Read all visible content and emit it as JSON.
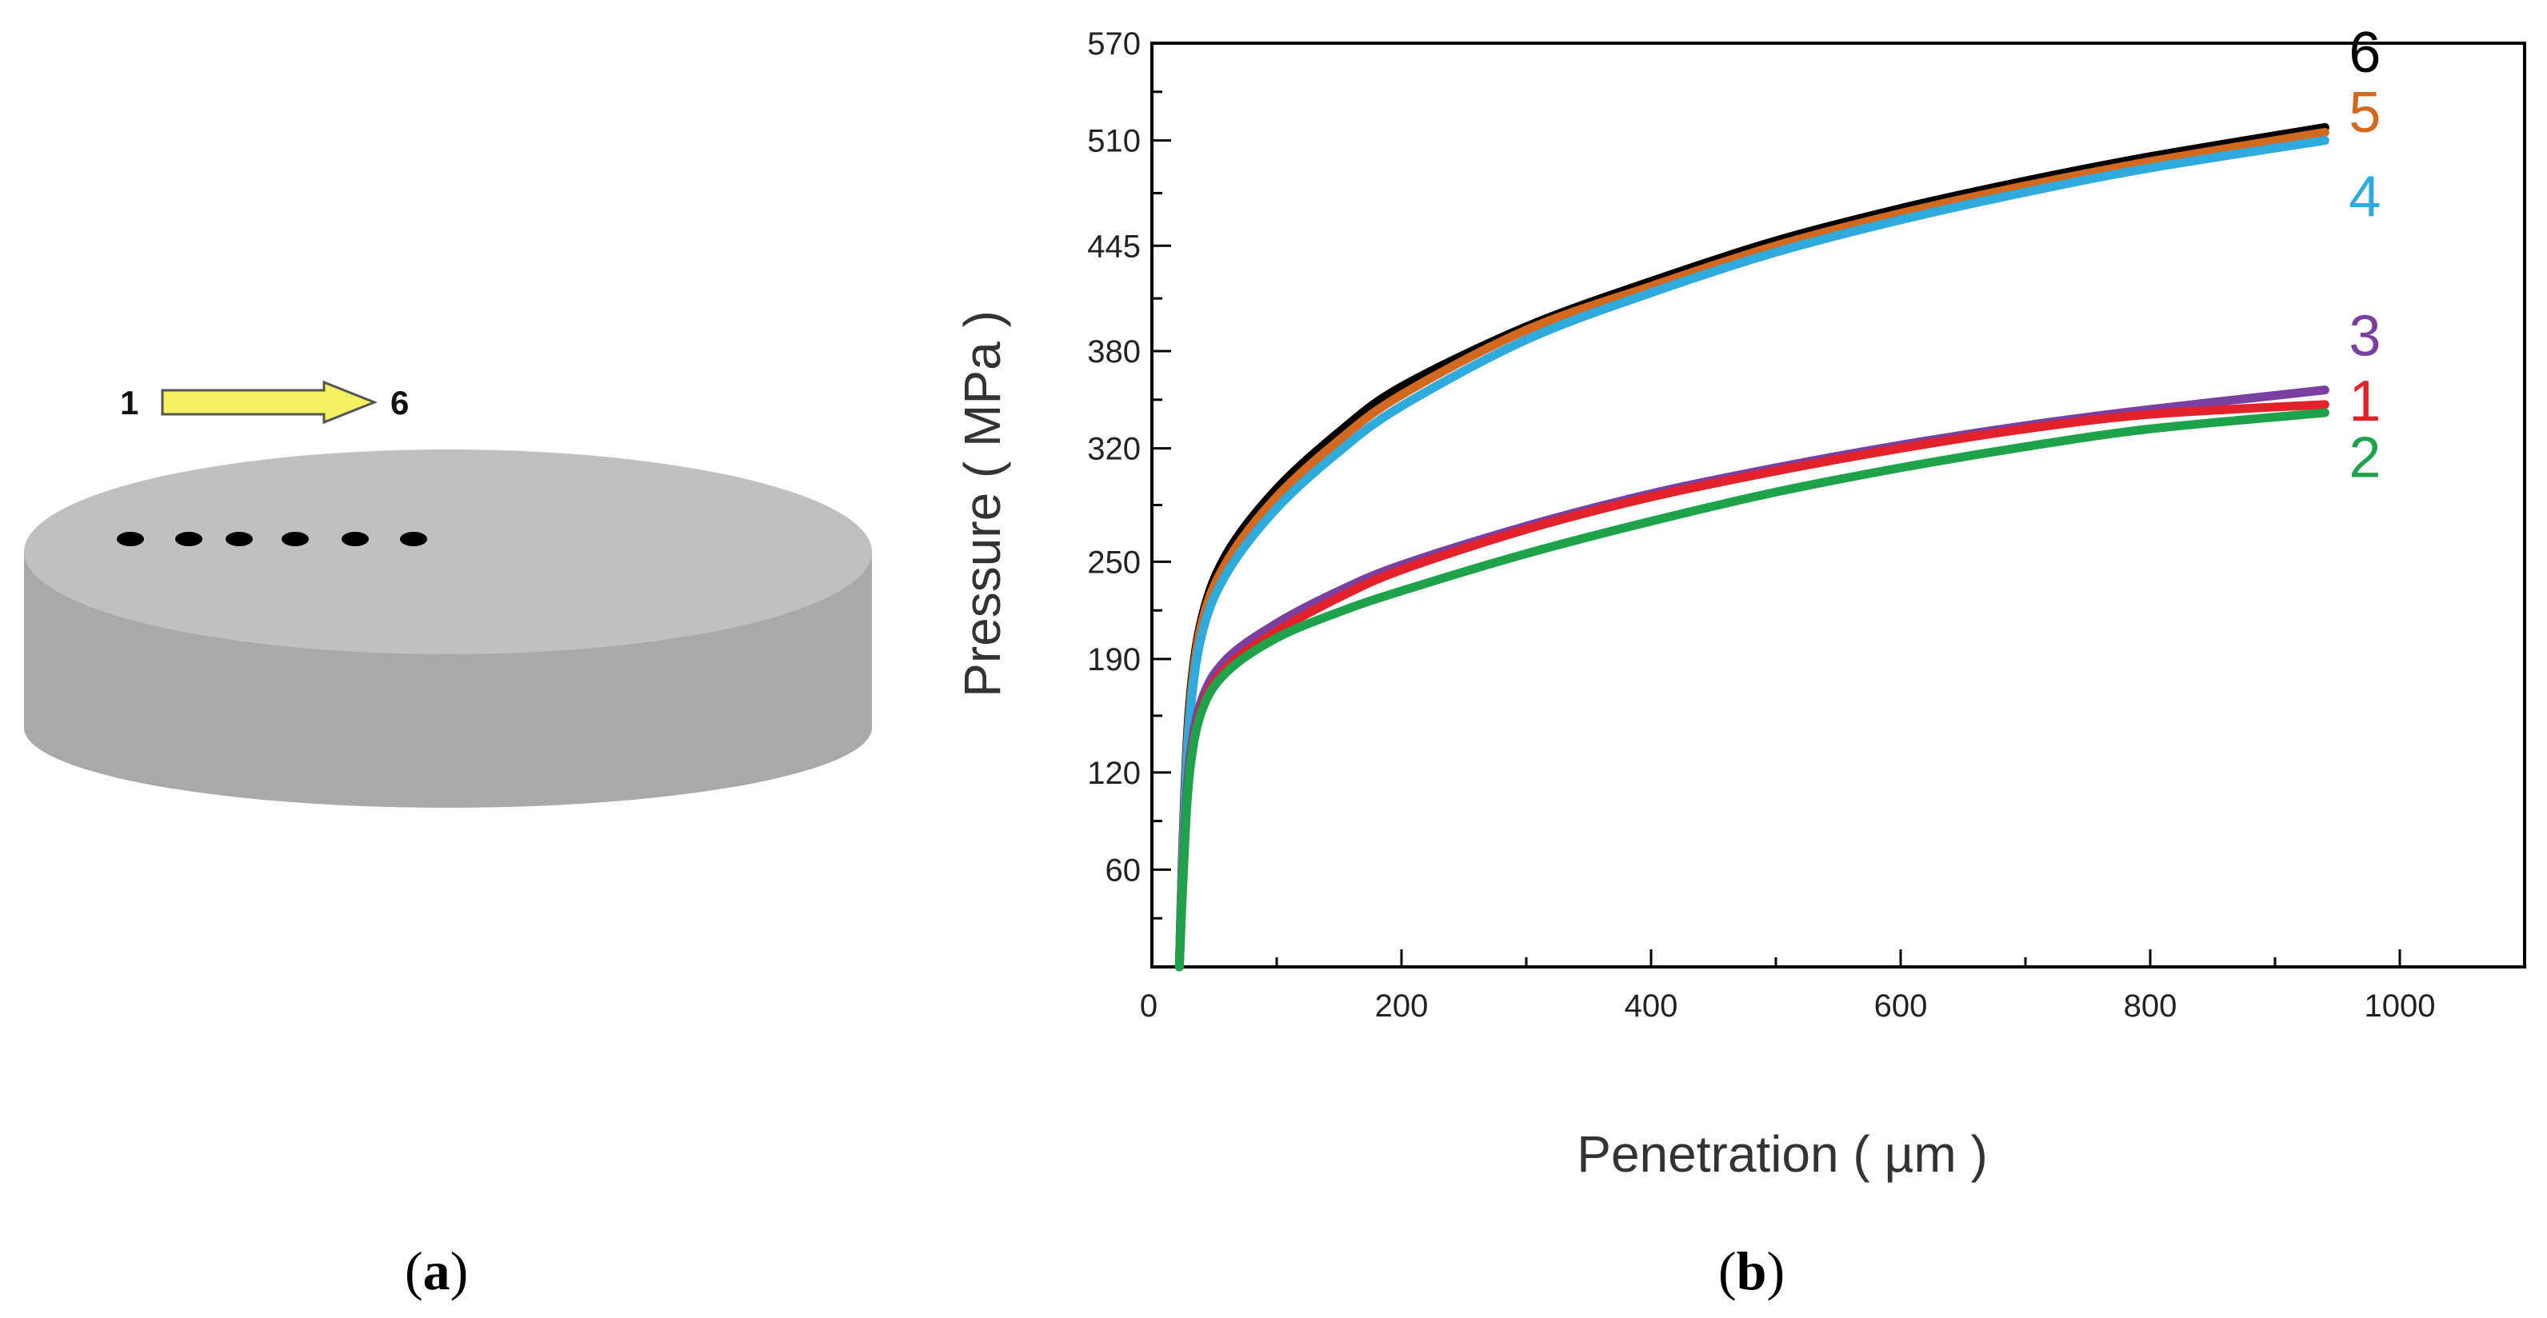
{
  "panel_a": {
    "label_open": "(",
    "label_letter": "a",
    "label_close": ")",
    "arrow_start": "1",
    "arrow_end": "6",
    "disk_color": "#c0c0c0",
    "disk_side_color": "#a9a9a9",
    "arrow_color": "#f4f160",
    "points_count": 6
  },
  "panel_b": {
    "label_open": "(",
    "label_letter": "b",
    "label_close": ")"
  },
  "chart_data": {
    "type": "line",
    "title": "",
    "xlabel": "Penetration ( µm )",
    "ylabel": "Pressure ( MPa )",
    "xlim": [
      0,
      1100
    ],
    "ylim": [
      0,
      570
    ],
    "xticks": [
      0,
      200,
      400,
      600,
      800,
      1000
    ],
    "yticks": [
      60,
      120,
      190,
      250,
      320,
      380,
      445,
      510,
      570
    ],
    "grid": false,
    "series": [
      {
        "name": "6",
        "color": "#000000",
        "x": [
          22,
          25,
          30,
          40,
          60,
          100,
          150,
          200,
          300,
          400,
          500,
          600,
          700,
          800,
          940
        ],
        "y": [
          0,
          80,
          160,
          215,
          255,
          295,
          330,
          358,
          395,
          423,
          448,
          468,
          485,
          500,
          518
        ]
      },
      {
        "name": "5",
        "color": "#d2691e",
        "x": [
          22,
          25,
          30,
          40,
          60,
          100,
          150,
          200,
          300,
          400,
          500,
          600,
          700,
          800,
          940
        ],
        "y": [
          0,
          75,
          155,
          212,
          250,
          290,
          325,
          353,
          393,
          420,
          445,
          465,
          482,
          497,
          515
        ]
      },
      {
        "name": "4",
        "color": "#2eaadc",
        "x": [
          22,
          25,
          30,
          40,
          60,
          100,
          150,
          200,
          300,
          400,
          500,
          600,
          700,
          800,
          940
        ],
        "y": [
          0,
          70,
          150,
          205,
          243,
          283,
          318,
          346,
          387,
          416,
          441,
          461,
          478,
          493,
          510
        ]
      },
      {
        "name": "3",
        "color": "#7b3fa0",
        "x": [
          22,
          25,
          30,
          40,
          60,
          100,
          150,
          200,
          300,
          400,
          500,
          600,
          700,
          800,
          940
        ],
        "y": [
          0,
          60,
          125,
          165,
          190,
          212,
          232,
          248,
          272,
          292,
          308,
          322,
          334,
          344,
          356
        ]
      },
      {
        "name": "1",
        "color": "#e3222b",
        "x": [
          22,
          25,
          30,
          40,
          60,
          100,
          150,
          200,
          300,
          400,
          500,
          600,
          700,
          800,
          940
        ],
        "y": [
          0,
          55,
          120,
          160,
          185,
          207,
          228,
          245,
          270,
          290,
          306,
          320,
          332,
          341,
          347
        ]
      },
      {
        "name": "2",
        "color": "#1fa34a",
        "x": [
          22,
          25,
          30,
          40,
          60,
          100,
          150,
          200,
          300,
          400,
          500,
          600,
          700,
          800,
          940
        ],
        "y": [
          0,
          55,
          118,
          158,
          182,
          203,
          219,
          232,
          255,
          275,
          293,
          308,
          321,
          332,
          342
        ]
      }
    ]
  }
}
